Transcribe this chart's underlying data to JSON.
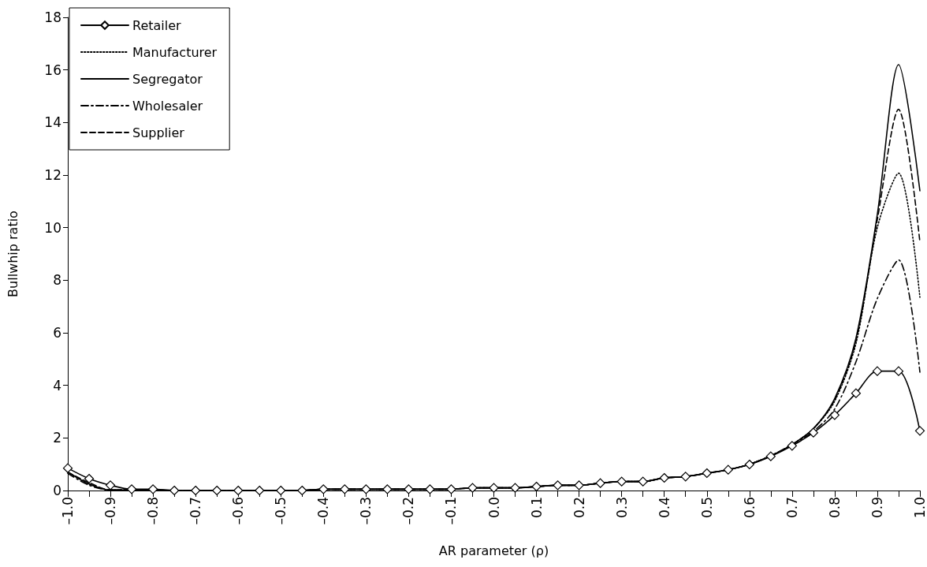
{
  "chart_data": {
    "type": "line",
    "xlabel": "AR parameter (ρ)",
    "ylabel": "Bullwhip ratio",
    "x": [
      -1.0,
      -0.95,
      -0.9,
      -0.85,
      -0.8,
      -0.75,
      -0.7,
      -0.65,
      -0.6,
      -0.55,
      -0.5,
      -0.45,
      -0.4,
      -0.35,
      -0.3,
      -0.25,
      -0.2,
      -0.15,
      -0.1,
      -0.05,
      0.0,
      0.05,
      0.1,
      0.15,
      0.2,
      0.25,
      0.3,
      0.35,
      0.4,
      0.45,
      0.5,
      0.55,
      0.6,
      0.65,
      0.7,
      0.75,
      0.8,
      0.85,
      0.9,
      0.95,
      1.0
    ],
    "series": [
      {
        "name": "Retailer",
        "color": "#000000",
        "marker": "diamond",
        "line_style": "solid",
        "values": [
          0.85,
          0.45,
          0.2,
          0.05,
          0.05,
          0,
          0,
          0,
          0,
          0,
          0,
          0,
          0.05,
          0.05,
          0.05,
          0.05,
          0.05,
          0.05,
          0.05,
          0.1,
          0.1,
          0.1,
          0.15,
          0.2,
          0.2,
          0.28,
          0.34,
          0.34,
          0.48,
          0.53,
          0.66,
          0.79,
          0.99,
          1.3,
          1.7,
          2.2,
          2.87,
          3.7,
          4.54,
          4.54,
          2.27
        ]
      },
      {
        "name": "Manufacturer",
        "color": "#000000",
        "marker": "none",
        "line_style": "dotted",
        "values": [
          0.7,
          0.25,
          0.02,
          0.02,
          0.02,
          0,
          0,
          0,
          0,
          0,
          0,
          0,
          0.05,
          0.05,
          0.05,
          0.05,
          0.05,
          0.05,
          0.05,
          0.1,
          0.1,
          0.1,
          0.15,
          0.2,
          0.2,
          0.28,
          0.34,
          0.34,
          0.48,
          0.53,
          0.66,
          0.79,
          1.0,
          1.32,
          1.75,
          2.35,
          3.4,
          5.6,
          10.0,
          12.07,
          7.35
        ]
      },
      {
        "name": "Segregator",
        "color": "#000000",
        "marker": "none",
        "line_style": "solid",
        "values": [
          0.7,
          0.25,
          0.02,
          0.02,
          0.02,
          0,
          0,
          0,
          0,
          0,
          0,
          0,
          0.05,
          0.05,
          0.05,
          0.05,
          0.05,
          0.05,
          0.05,
          0.1,
          0.1,
          0.1,
          0.15,
          0.2,
          0.2,
          0.28,
          0.34,
          0.34,
          0.48,
          0.53,
          0.66,
          0.79,
          1.0,
          1.32,
          1.75,
          2.35,
          3.5,
          5.8,
          10.5,
          16.2,
          11.4
        ]
      },
      {
        "name": "Wholesaler",
        "color": "#000000",
        "marker": "none",
        "line_style": "dashdot",
        "values": [
          0.65,
          0.2,
          0.02,
          0.02,
          0.02,
          0,
          0,
          0,
          0,
          0,
          0,
          0,
          0.05,
          0.05,
          0.05,
          0.05,
          0.05,
          0.05,
          0.05,
          0.1,
          0.1,
          0.1,
          0.15,
          0.2,
          0.2,
          0.28,
          0.34,
          0.34,
          0.48,
          0.53,
          0.66,
          0.79,
          1.0,
          1.32,
          1.75,
          2.25,
          3.1,
          4.9,
          7.3,
          8.77,
          4.5
        ]
      },
      {
        "name": "Supplier",
        "color": "#000000",
        "marker": "none",
        "line_style": "dashed",
        "values": [
          0.7,
          0.3,
          0.02,
          0.02,
          0.02,
          0,
          0,
          0,
          0,
          0,
          0,
          0,
          0.05,
          0.05,
          0.05,
          0.05,
          0.05,
          0.05,
          0.05,
          0.1,
          0.1,
          0.1,
          0.15,
          0.2,
          0.2,
          0.28,
          0.34,
          0.34,
          0.48,
          0.53,
          0.66,
          0.79,
          1.0,
          1.32,
          1.75,
          2.35,
          3.45,
          5.7,
          10.3,
          14.5,
          9.45
        ]
      }
    ],
    "xlim": [
      -1.0,
      1.0
    ],
    "xticks": [
      {
        "value": -1.0,
        "label": "–1.0"
      },
      {
        "value": -0.95,
        "label": null
      },
      {
        "value": -0.9,
        "label": "–0.9"
      },
      {
        "value": -0.85,
        "label": null
      },
      {
        "value": -0.8,
        "label": "–0.8"
      },
      {
        "value": -0.75,
        "label": null
      },
      {
        "value": -0.7,
        "label": "–0.7"
      },
      {
        "value": -0.65,
        "label": null
      },
      {
        "value": -0.6,
        "label": "–0.6"
      },
      {
        "value": -0.55,
        "label": null
      },
      {
        "value": -0.5,
        "label": "–0.5"
      },
      {
        "value": -0.45,
        "label": null
      },
      {
        "value": -0.4,
        "label": "–0.4"
      },
      {
        "value": -0.35,
        "label": null
      },
      {
        "value": -0.3,
        "label": "–0.3"
      },
      {
        "value": -0.25,
        "label": null
      },
      {
        "value": -0.2,
        "label": "–0.2"
      },
      {
        "value": -0.15,
        "label": null
      },
      {
        "value": -0.1,
        "label": "–0.1"
      },
      {
        "value": -0.05,
        "label": null
      },
      {
        "value": 0.0,
        "label": "0.0"
      },
      {
        "value": 0.05,
        "label": null
      },
      {
        "value": 0.1,
        "label": "0.1"
      },
      {
        "value": 0.15,
        "label": null
      },
      {
        "value": 0.2,
        "label": "0.2"
      },
      {
        "value": 0.25,
        "label": null
      },
      {
        "value": 0.3,
        "label": "0.3"
      },
      {
        "value": 0.35,
        "label": null
      },
      {
        "value": 0.4,
        "label": "0.4"
      },
      {
        "value": 0.45,
        "label": null
      },
      {
        "value": 0.5,
        "label": "0.5"
      },
      {
        "value": 0.55,
        "label": null
      },
      {
        "value": 0.6,
        "label": "0.6"
      },
      {
        "value": 0.65,
        "label": null
      },
      {
        "value": 0.7,
        "label": "0.7"
      },
      {
        "value": 0.75,
        "label": null
      },
      {
        "value": 0.8,
        "label": "0.8"
      },
      {
        "value": 0.85,
        "label": null
      },
      {
        "value": 0.9,
        "label": "0.9"
      },
      {
        "value": 0.95,
        "label": null
      },
      {
        "value": 1.0,
        "label": "1.0"
      }
    ],
    "ylim": [
      0,
      18
    ],
    "yticks": [
      0,
      2,
      4,
      6,
      8,
      10,
      12,
      14,
      16,
      18
    ],
    "grid": false,
    "legend": "top left"
  }
}
